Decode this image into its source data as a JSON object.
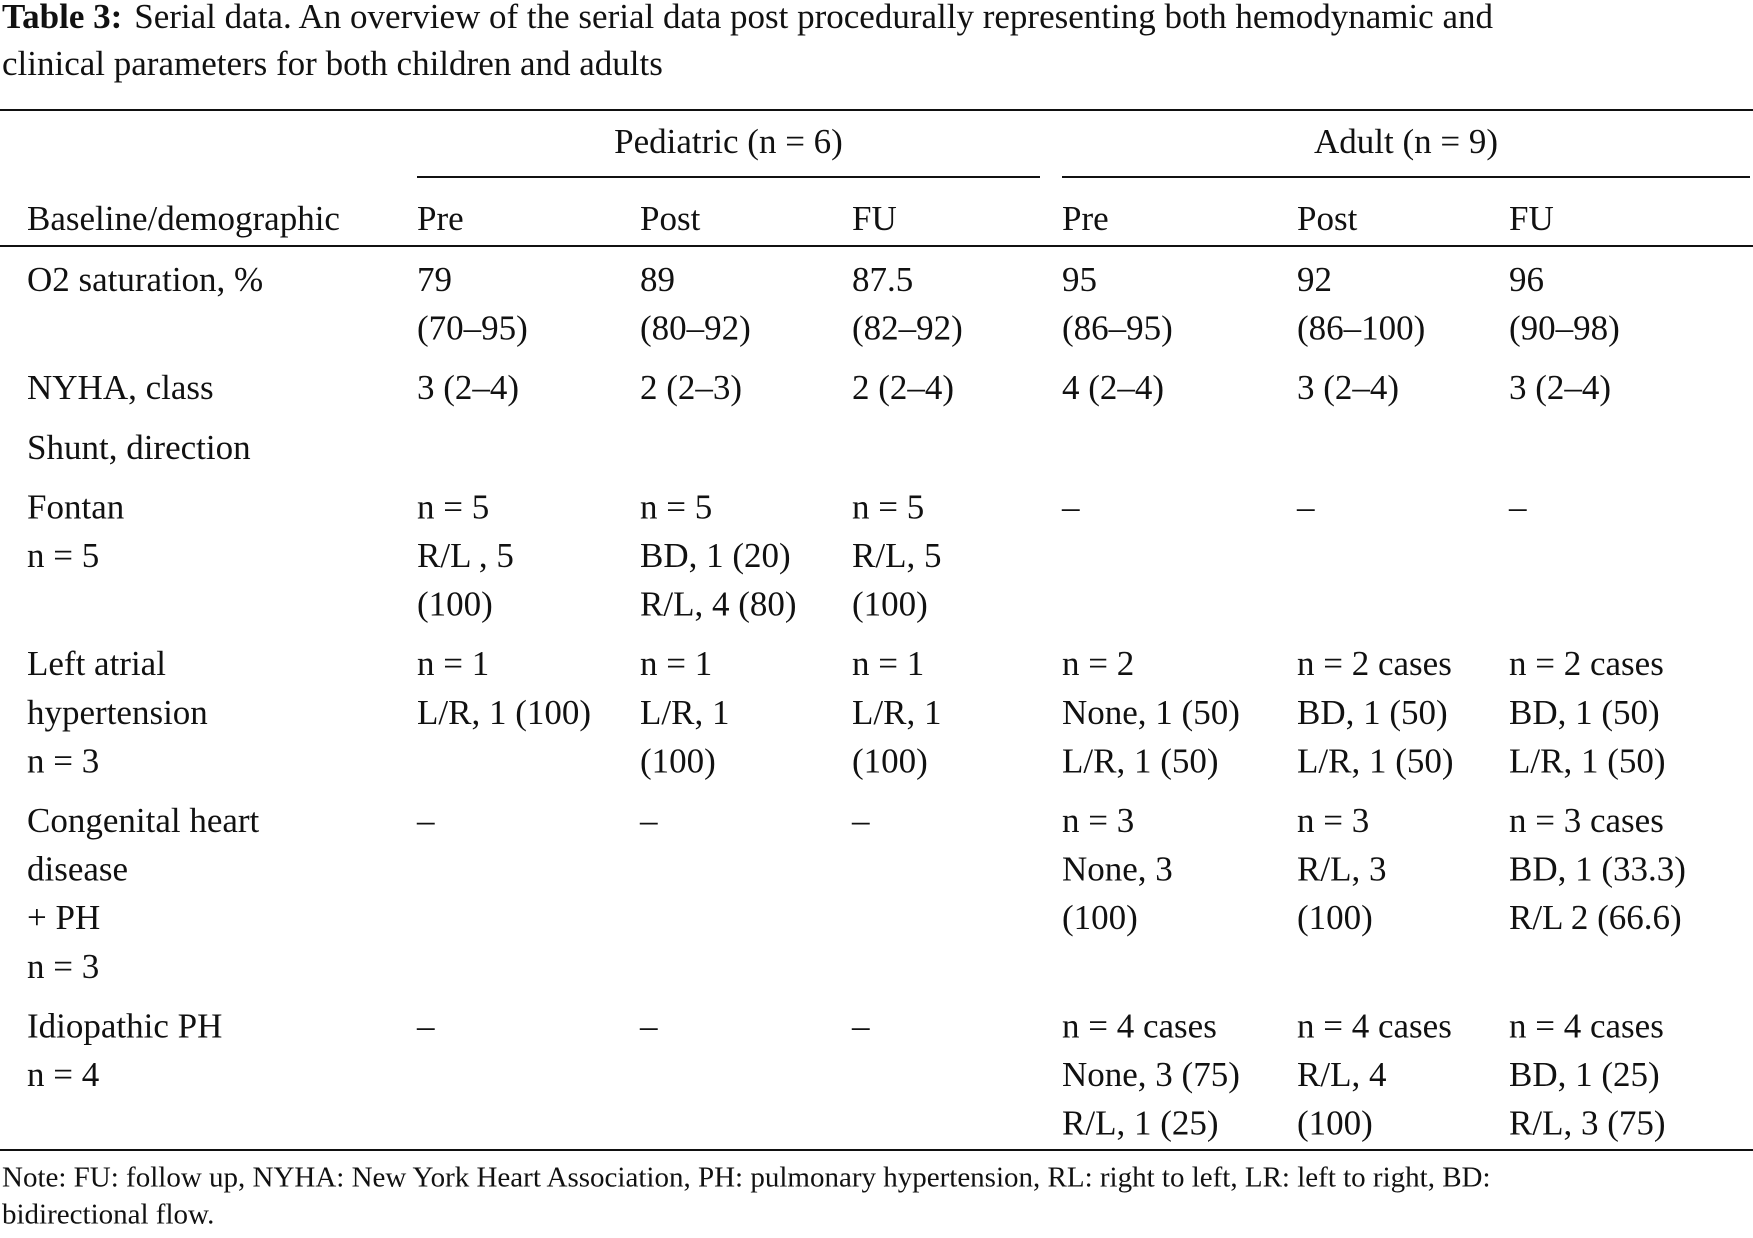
{
  "caption": {
    "label": "Table 3:",
    "lines": [
      "Serial data. An overview of the serial data post procedurally representing both hemodynamic and",
      "clinical parameters for both children and adults"
    ]
  },
  "table": {
    "groups": [
      "Pediatric (n = 6)",
      "Adult (n = 9)"
    ],
    "columns": [
      "Baseline/demographic",
      "Pre",
      "Post",
      "FU",
      "Pre",
      "Post",
      "FU"
    ],
    "rows": [
      {
        "label": [
          "O2 saturation, %"
        ],
        "cells": [
          [
            "79",
            "(70–95)"
          ],
          [
            "89",
            "(80–92)"
          ],
          [
            "87.5",
            "(82–92)"
          ],
          [
            "95",
            "(86–95)"
          ],
          [
            "92",
            "(86–100)"
          ],
          [
            "96",
            "(90–98)"
          ]
        ]
      },
      {
        "label": [
          "NYHA, class"
        ],
        "cells": [
          [
            "3 (2–4)"
          ],
          [
            "2 (2–3)"
          ],
          [
            "2 (2–4)"
          ],
          [
            "4 (2–4)"
          ],
          [
            "3 (2–4)"
          ],
          [
            "3 (2–4)"
          ]
        ]
      },
      {
        "label": [
          "Shunt, direction"
        ]
      },
      {
        "label": [
          "Fontan",
          "n = 5"
        ],
        "cells": [
          [
            "n = 5",
            "R/L , 5",
            "(100)"
          ],
          [
            "n = 5",
            "BD, 1 (20)",
            "R/L, 4 (80)"
          ],
          [
            "n = 5",
            "R/L, 5",
            "(100)"
          ],
          [
            "–"
          ],
          [
            "–"
          ],
          [
            "–"
          ]
        ]
      },
      {
        "label": [
          "Left atrial",
          "hypertension",
          "n = 3"
        ],
        "cells": [
          [
            "n = 1",
            "L/R, 1 (100)"
          ],
          [
            "n = 1",
            "L/R, 1",
            "(100)"
          ],
          [
            "n = 1",
            "L/R, 1",
            "(100)"
          ],
          [
            "n = 2",
            "None, 1 (50)",
            "L/R, 1 (50)"
          ],
          [
            "n = 2 cases",
            "BD, 1 (50)",
            "L/R, 1 (50)"
          ],
          [
            "n = 2 cases",
            "BD, 1 (50)",
            "L/R, 1 (50)"
          ]
        ]
      },
      {
        "label": [
          "Congenital heart",
          "disease",
          "+ PH",
          "n = 3"
        ],
        "cells": [
          [
            "–"
          ],
          [
            "–"
          ],
          [
            "–"
          ],
          [
            "n = 3",
            "None, 3",
            "(100)"
          ],
          [
            "n = 3",
            "R/L, 3",
            "(100)"
          ],
          [
            "n = 3 cases",
            "BD, 1 (33.3)",
            "R/L 2 (66.6)"
          ]
        ]
      },
      {
        "label": [
          "Idiopathic PH",
          "n = 4"
        ],
        "cells": [
          [
            "–"
          ],
          [
            "–"
          ],
          [
            "–"
          ],
          [
            "n = 4 cases",
            "None, 3 (75)",
            "R/L, 1 (25)"
          ],
          [
            "n = 4 cases",
            "R/L, 4",
            "(100)"
          ],
          [
            "n = 4 cases",
            "BD, 1 (25)",
            "R/L, 3 (75)"
          ]
        ]
      }
    ]
  },
  "note": [
    "Note: FU: follow up, NYHA: New York Heart Association, PH: pulmonary hypertension, RL: right to left, LR: left to right, BD:",
    "bidirectional flow."
  ]
}
